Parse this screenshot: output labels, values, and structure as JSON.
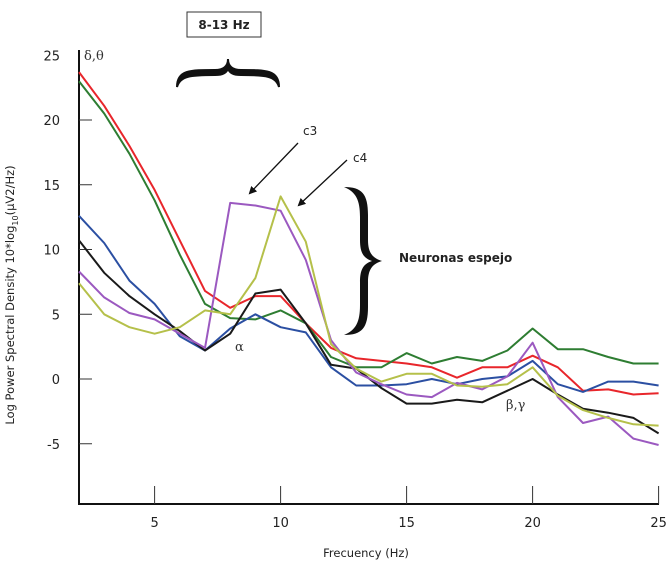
{
  "chart_data": {
    "type": "line",
    "title": "",
    "xlabel": "Frecuency (Hz)",
    "ylabel": "Log Power Spectral Density 10*log",
    "ylabel_sub": "10",
    "ylabel_unit": "(μV2/Hz)",
    "xlim": [
      2,
      25
    ],
    "ylim": [
      -9.5,
      27
    ],
    "xticks": [
      5,
      10,
      15,
      20,
      25
    ],
    "yticks": [
      -5,
      0,
      5,
      10,
      15,
      20,
      25
    ],
    "grid": false,
    "x": [
      2,
      3,
      4,
      5,
      6,
      7,
      8,
      9,
      10,
      11,
      12,
      13,
      14,
      15,
      16,
      17,
      18,
      19,
      20,
      21,
      22,
      23,
      24,
      25
    ],
    "series": [
      {
        "name": "red",
        "color": "#e8262b",
        "values": [
          23.7,
          21.1,
          18.0,
          14.6,
          10.7,
          6.8,
          5.5,
          6.4,
          6.4,
          4.3,
          2.4,
          1.6,
          1.4,
          1.2,
          0.9,
          0.1,
          0.9,
          0.9,
          1.8,
          0.9,
          -0.9,
          -0.8,
          -1.2,
          -1.1
        ]
      },
      {
        "name": "green",
        "color": "#2e7d32",
        "values": [
          23.0,
          20.5,
          17.4,
          13.8,
          9.6,
          5.8,
          4.7,
          4.6,
          5.3,
          4.3,
          1.7,
          0.9,
          0.9,
          2.0,
          1.2,
          1.7,
          1.4,
          2.2,
          3.9,
          2.3,
          2.3,
          1.7,
          1.2,
          1.2
        ]
      },
      {
        "name": "blue",
        "color": "#2b4fa2",
        "values": [
          12.6,
          10.5,
          7.6,
          5.8,
          3.3,
          2.2,
          3.9,
          5.0,
          4.0,
          3.6,
          0.9,
          -0.5,
          -0.5,
          -0.4,
          0.0,
          -0.4,
          0.0,
          0.2,
          1.4,
          -0.4,
          -1.0,
          -0.2,
          -0.2,
          -0.5
        ]
      },
      {
        "name": "black",
        "color": "#1a1a1a",
        "values": [
          10.7,
          8.2,
          6.4,
          5.0,
          3.7,
          2.2,
          3.5,
          6.6,
          6.9,
          4.3,
          1.1,
          0.8,
          -0.7,
          -1.9,
          -1.9,
          -1.6,
          -1.8,
          -0.9,
          0.0,
          -1.2,
          -2.3,
          -2.6,
          -3.0,
          -4.2
        ]
      },
      {
        "name": "purple (c3)",
        "color": "#9b59c0",
        "values": [
          8.3,
          6.3,
          5.1,
          4.6,
          3.5,
          2.4,
          13.6,
          13.4,
          13.0,
          9.2,
          3.0,
          0.5,
          -0.4,
          -1.2,
          -1.4,
          -0.3,
          -0.8,
          0.2,
          2.8,
          -1.4,
          -3.4,
          -2.9,
          -4.6,
          -5.1
        ]
      },
      {
        "name": "yellow (c4)",
        "color": "#b5c04a",
        "values": [
          7.4,
          5.0,
          4.0,
          3.5,
          4.0,
          5.3,
          5.0,
          7.8,
          14.1,
          10.6,
          2.7,
          0.8,
          -0.2,
          0.4,
          0.4,
          -0.5,
          -0.6,
          -0.4,
          0.9,
          -1.3,
          -2.4,
          -3.0,
          -3.5,
          -3.6
        ]
      }
    ],
    "annotations": {
      "band_box": "8-13 Hz",
      "delta_theta": "δ,θ",
      "alpha": "α",
      "beta_gamma": "β,γ",
      "c3": "c3",
      "c4": "c4",
      "mirror_neurons": "Neuronas espejo"
    }
  }
}
